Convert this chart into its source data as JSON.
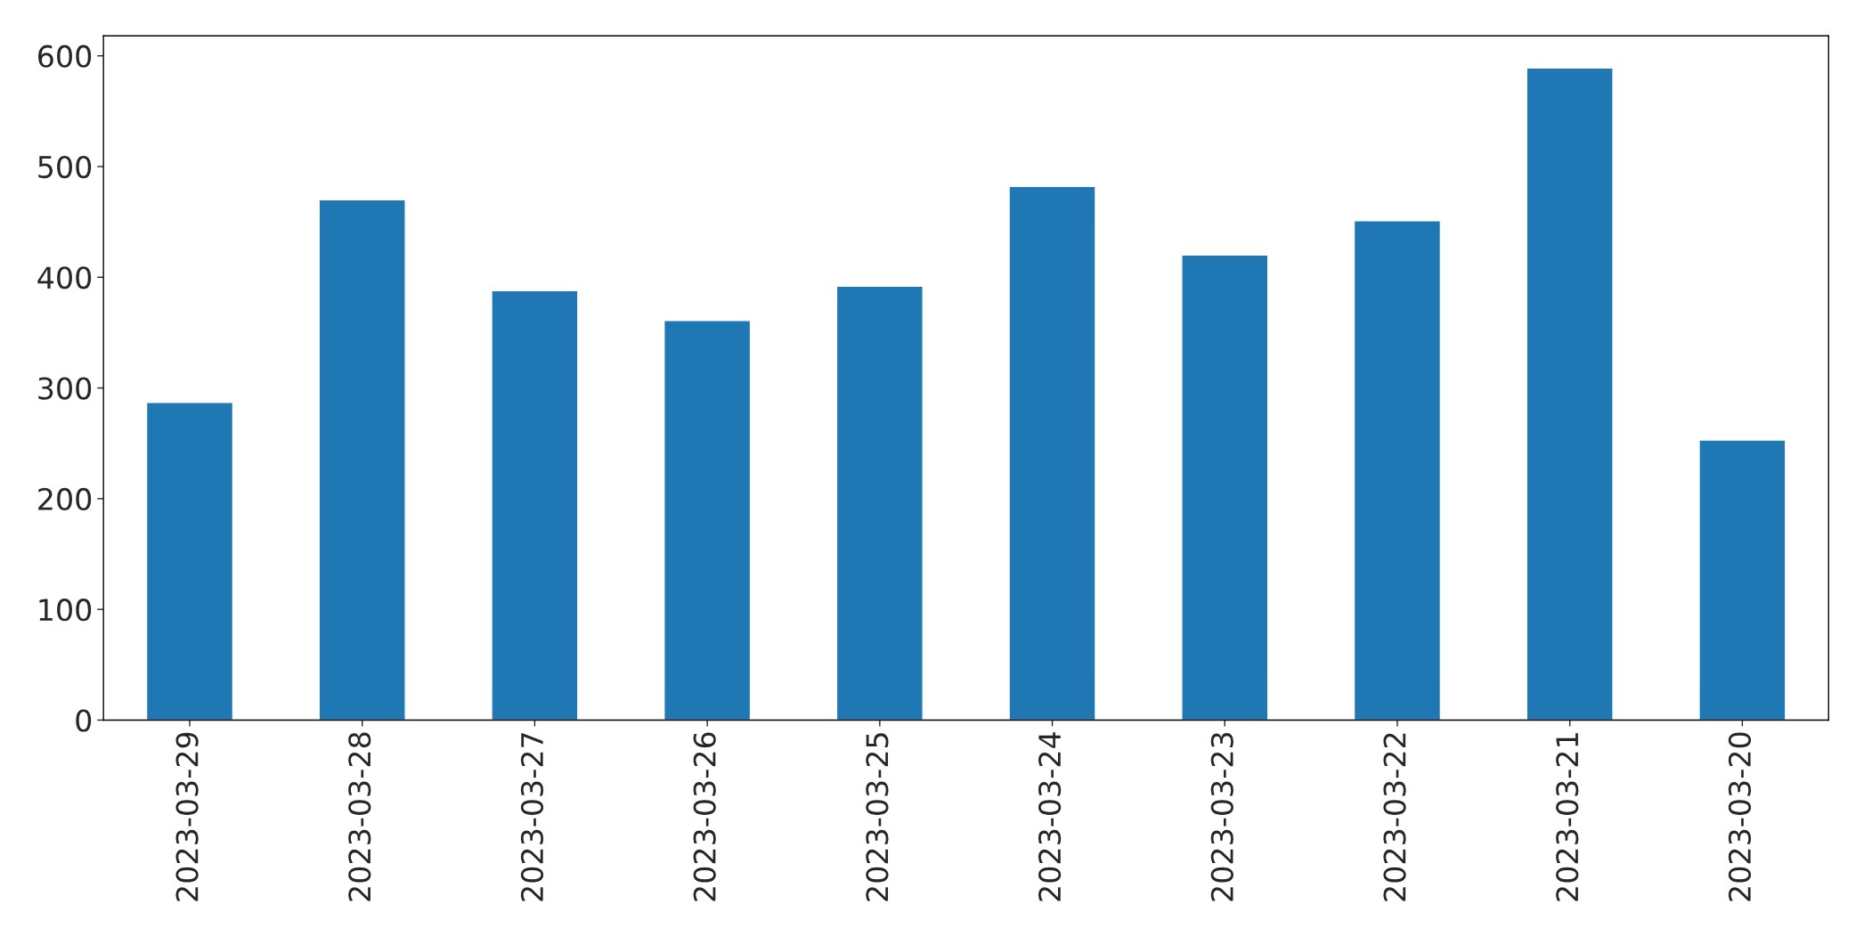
{
  "chart_data": {
    "type": "bar",
    "categories": [
      "2023-03-29",
      "2023-03-28",
      "2023-03-27",
      "2023-03-26",
      "2023-03-25",
      "2023-03-24",
      "2023-03-23",
      "2023-03-22",
      "2023-03-21",
      "2023-03-20"
    ],
    "values": [
      287,
      470,
      388,
      361,
      392,
      482,
      420,
      451,
      589,
      253
    ],
    "color": "#1f77b4",
    "ylim": [
      0,
      618
    ],
    "yticks": [
      0,
      100,
      200,
      300,
      400,
      500,
      600
    ],
    "grid": false,
    "legend": false
  }
}
